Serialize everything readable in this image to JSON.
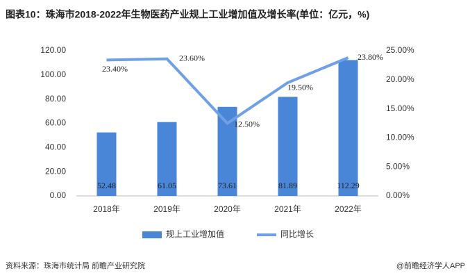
{
  "chart_data": {
    "type": "combo",
    "title": "图表10：珠海市2018-2022年生物医药产业规上工业增加值及增长率(单位：亿元，%)",
    "source": "资料来源：珠海市统计局 前瞻产业研究院",
    "watermark": "@前瞻经济学人APP",
    "categories": [
      "2018年",
      "2019年",
      "2020年",
      "2021年",
      "2022年"
    ],
    "series": [
      {
        "name": "规上工业增加值",
        "type": "bar",
        "color": "#4a86d8",
        "values": [
          52.48,
          61.05,
          73.61,
          81.89,
          112.29
        ]
      },
      {
        "name": "同比增长",
        "type": "line",
        "axis": "y2",
        "color": "#6fa0e6",
        "values": [
          23.4,
          23.6,
          12.5,
          19.5,
          23.8
        ],
        "value_labels": [
          "23.40%",
          "23.60%",
          "12.50%",
          "19.50%",
          "23.80%"
        ]
      }
    ],
    "ylim": [
      0,
      120
    ],
    "yticks": [
      {
        "value": 0,
        "label": "0.00"
      },
      {
        "value": 20,
        "label": "20.00"
      },
      {
        "value": 40,
        "label": "40.00"
      },
      {
        "value": 60,
        "label": "60.00"
      },
      {
        "value": 80,
        "label": "80.00"
      },
      {
        "value": 100,
        "label": "100.00"
      },
      {
        "value": 120,
        "label": "120.00"
      }
    ],
    "y2lim": [
      0,
      25
    ],
    "y2ticks": [
      {
        "value": 0,
        "label": "0.00%"
      },
      {
        "value": 5,
        "label": "5.00%"
      },
      {
        "value": 10,
        "label": "10.00%"
      },
      {
        "value": 15,
        "label": "15.00%"
      },
      {
        "value": 20,
        "label": "20.00%"
      },
      {
        "value": 25,
        "label": "25.00%"
      }
    ],
    "legend": "bottom"
  }
}
